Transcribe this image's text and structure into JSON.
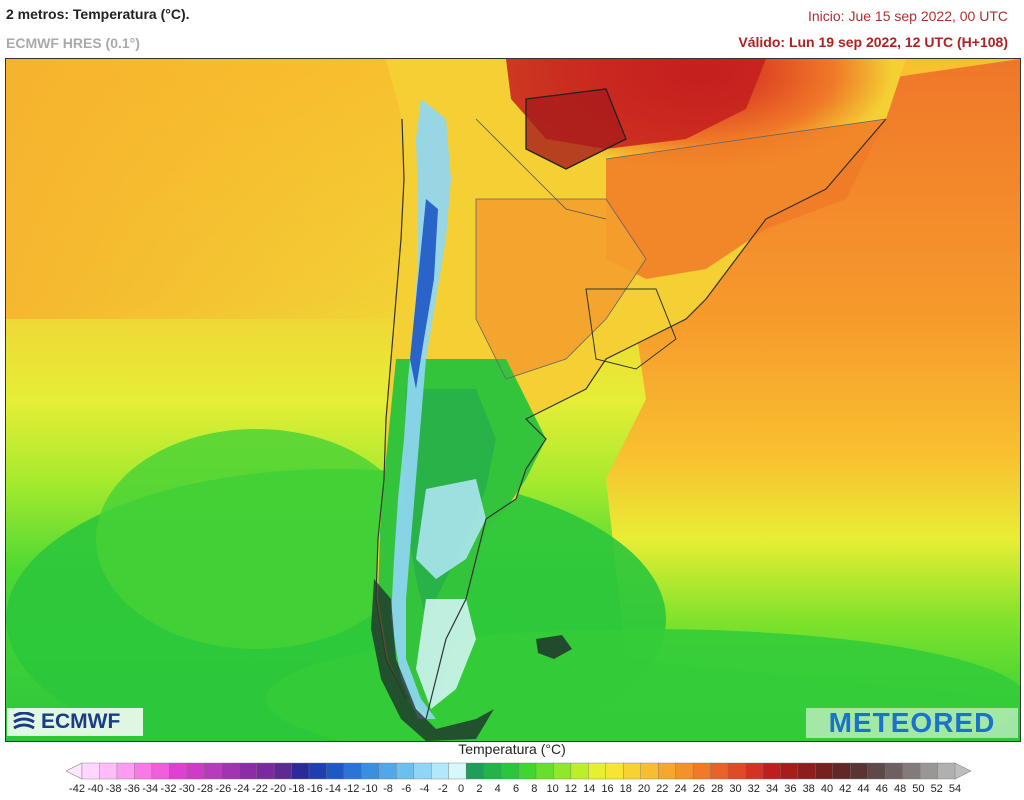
{
  "header": {
    "title": "2 metros: Temperatura (°C).",
    "model": "ECMWF HRES (0.1°)",
    "init": "Inicio: Jue 15 sep 2022, 00 UTC",
    "valid": "Válido: Lun 19 sep 2022, 12 UTC (H+108)"
  },
  "logos": {
    "left": "ECMWF",
    "right": "METEORED"
  },
  "legend": {
    "title": "Temperatura (°C)",
    "ticks": [
      "-42",
      "-40",
      "-38",
      "-36",
      "-34",
      "-32",
      "-30",
      "-28",
      "-26",
      "-24",
      "-22",
      "-20",
      "-18",
      "-16",
      "-14",
      "-12",
      "-10",
      "-8",
      "-6",
      "-4",
      "-2",
      "0",
      "2",
      "4",
      "6",
      "8",
      "10",
      "12",
      "14",
      "16",
      "18",
      "20",
      "22",
      "24",
      "26",
      "28",
      "30",
      "32",
      "34",
      "36",
      "38",
      "40",
      "42",
      "44",
      "46",
      "48",
      "50",
      "52",
      "54"
    ],
    "colors": [
      "#ffd6ff",
      "#ffbcf7",
      "#ff9bf0",
      "#f77ae6",
      "#ee5edd",
      "#e040d2",
      "#cd3bc8",
      "#b83abd",
      "#a233b2",
      "#8c2ca8",
      "#7a2a9e",
      "#5d2a94",
      "#2a2a9a",
      "#1f3fb0",
      "#1e58c4",
      "#2a74d6",
      "#3a90e0",
      "#4fa8ea",
      "#6cc0f0",
      "#8fd6f6",
      "#b3e8fa",
      "#d8f7fb",
      "#1e9e5a",
      "#24b34a",
      "#2cc63c",
      "#3fd632",
      "#66e02c",
      "#8fe82a",
      "#bcee2a",
      "#e6f032",
      "#f6e634",
      "#f8d230",
      "#f8be2e",
      "#f6a82c",
      "#f4922a",
      "#f07a28",
      "#ea6226",
      "#e04a24",
      "#d43222",
      "#c01e1e",
      "#a81c1c",
      "#8e1e1e",
      "#762020",
      "#622828",
      "#5a3434",
      "#5e4848",
      "#6e6060",
      "#847a7a",
      "#9a9696",
      "#b0b0b0"
    ]
  }
}
